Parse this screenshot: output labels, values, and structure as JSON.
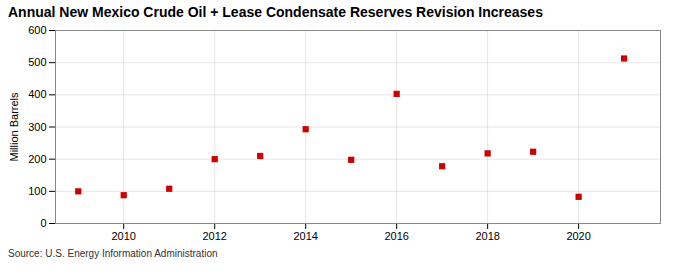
{
  "chart_data": {
    "type": "scatter",
    "title": "Annual New Mexico Crude Oil + Lease Condensate Reserves Revision Increases",
    "ylabel": "Million Barrels",
    "source": "Source: U.S. Energy Information Administration",
    "x": [
      2009,
      2010,
      2011,
      2012,
      2013,
      2014,
      2015,
      2016,
      2017,
      2018,
      2019,
      2020,
      2021
    ],
    "values": [
      100,
      88,
      108,
      200,
      210,
      293,
      198,
      403,
      178,
      218,
      223,
      83,
      513
    ],
    "color": "#cc0000",
    "marker": "square",
    "xlim": [
      2008.5,
      2021.8
    ],
    "ylim": [
      0,
      600
    ],
    "xticks": [
      2010,
      2012,
      2014,
      2016,
      2018,
      2020
    ],
    "yticks": [
      0,
      100,
      200,
      300,
      400,
      500,
      600
    ],
    "grid": true
  }
}
